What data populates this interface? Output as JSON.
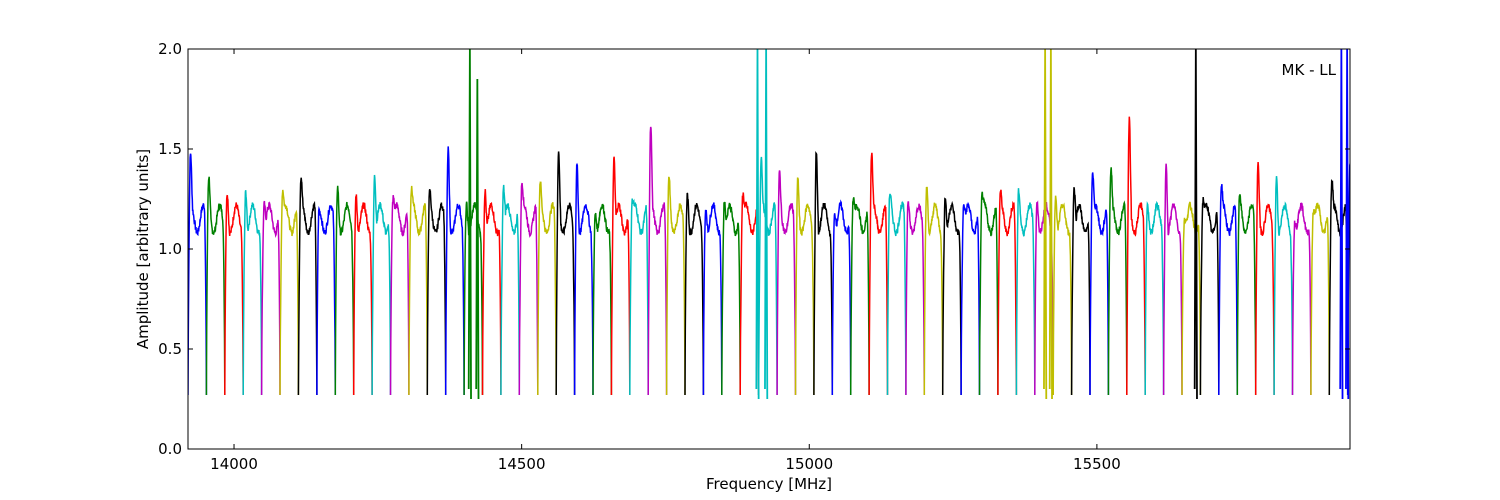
{
  "chart_data": {
    "type": "line",
    "title": "",
    "xlabel": "Frequency [MHz]",
    "ylabel": "Amplitude [arbitrary units]",
    "xlim": [
      13920,
      15940
    ],
    "ylim": [
      0.0,
      2.0
    ],
    "xticks": [
      14000,
      14500,
      15000,
      15500
    ],
    "yticks": [
      0.0,
      0.5,
      1.0,
      1.5,
      2.0
    ],
    "xtick_labels": [
      "14000",
      "14500",
      "15000",
      "15500"
    ],
    "ytick_labels": [
      "0.0",
      "0.5",
      "1.0",
      "1.5",
      "2.0"
    ],
    "annotation": "MK - LL",
    "grid": false,
    "legend": "none",
    "band_width_mhz": 32,
    "color_cycle": [
      "#0000ff",
      "#008000",
      "#ff0000",
      "#00bfbf",
      "#bf00bf",
      "#bfbf00",
      "#000000"
    ],
    "channel_peaks": [
      1.41,
      1.31,
      1.29,
      1.35,
      1.28,
      1.29,
      1.3,
      1.13,
      1.3,
      1.32,
      1.43,
      1.27,
      1.25,
      1.22,
      1.47,
      1.26,
      1.36,
      1.34,
      1.3,
      1.27,
      1.45,
      1.45,
      1.24,
      1.5,
      1.23,
      1.56,
      1.3,
      1.27,
      1.26,
      1.3,
      1.28,
      1.41,
      1.32,
      1.33,
      1.54,
      1.24,
      1.28,
      1.44,
      1.21,
      1.19,
      1.35,
      1.33,
      1.26,
      1.25,
      1.22,
      1.24,
      1.25,
      1.32,
      1.36,
      1.38,
      1.34,
      1.59,
      1.2,
      1.47,
      1.21,
      1.26,
      1.27,
      1.21,
      1.41,
      1.4,
      1.2,
      1.22,
      1.3,
      1.36
    ],
    "spikes": [
      {
        "x": 14410,
        "y": 2.0,
        "color": "#008000"
      },
      {
        "x": 14423,
        "y": 1.85,
        "color": "#008000"
      },
      {
        "x": 14910,
        "y": 2.0,
        "color": "#00bfbf"
      },
      {
        "x": 14925,
        "y": 2.0,
        "color": "#00bfbf"
      },
      {
        "x": 15410,
        "y": 2.0,
        "color": "#bfbf00"
      },
      {
        "x": 15420,
        "y": 2.0,
        "color": "#bfbf00"
      },
      {
        "x": 15672,
        "y": 2.0,
        "color": "#000000"
      },
      {
        "x": 15925,
        "y": 2.0,
        "color": "#0000ff"
      },
      {
        "x": 15935,
        "y": 2.0,
        "color": "#0000ff"
      }
    ]
  }
}
